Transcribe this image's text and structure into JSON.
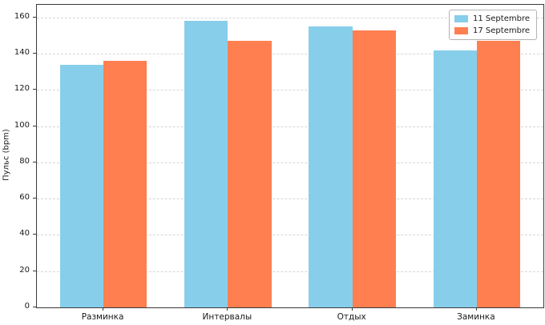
{
  "chart_data": {
    "type": "bar",
    "categories": [
      "Разминка",
      "Интервалы",
      "Отдых",
      "Заминка"
    ],
    "series": [
      {
        "name": "11 Septembre",
        "color": "#87CEEB",
        "values": [
          134,
          158,
          155,
          142
        ]
      },
      {
        "name": "17 Septembre",
        "color": "#FF7F50",
        "values": [
          136,
          147,
          153,
          147
        ]
      }
    ],
    "title": "",
    "xlabel": "",
    "ylabel": "Пульс (bpm)",
    "ylim": [
      0,
      167
    ],
    "yticks": [
      0,
      20,
      40,
      60,
      80,
      100,
      120,
      140,
      160
    ],
    "grid": "horizontal-dashed",
    "legend_position": "upper-right",
    "bar_width_ratio": 0.35
  },
  "colors": {
    "grid": "#d5d5d5",
    "spine": "#3a3a3a",
    "text": "#1a1a1a",
    "legend_border": "#b3b3b3",
    "background": "#ffffff",
    "series_blue": "#87CEEB",
    "series_orange": "#FF7F50"
  }
}
